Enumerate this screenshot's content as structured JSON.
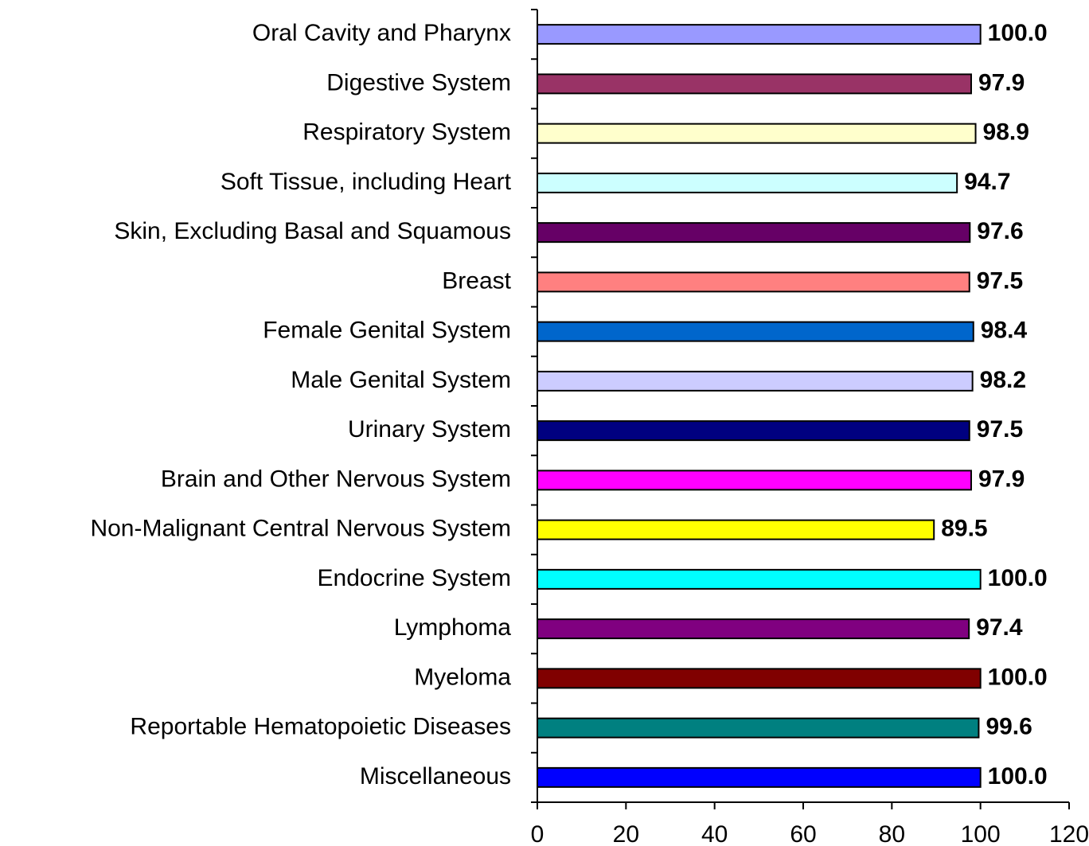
{
  "chart_data": {
    "type": "bar",
    "orientation": "horizontal",
    "categories": [
      "Oral Cavity and Pharynx",
      "Digestive System",
      "Respiratory System",
      "Soft Tissue, including Heart",
      "Skin, Excluding Basal and Squamous",
      "Breast",
      "Female Genital System",
      "Male Genital System",
      "Urinary System",
      "Brain and Other Nervous System",
      "Non-Malignant Central Nervous System",
      "Endocrine System",
      "Lymphoma",
      "Myeloma",
      "Reportable Hematopoietic Diseases",
      "Miscellaneous"
    ],
    "values": [
      100,
      97.9,
      98.9,
      94.7,
      97.6,
      97.5,
      98.4,
      98.2,
      97.5,
      97.9,
      89.5,
      100,
      97.4,
      100,
      99.6,
      100
    ],
    "value_labels": [
      "100.0",
      "97.9",
      "98.9",
      "94.7",
      "97.6",
      "97.5",
      "98.4",
      "98.2",
      "97.5",
      "97.9",
      "89.5",
      "100.0",
      "97.4",
      "100.0",
      "99.6",
      "100.0"
    ],
    "colors": [
      "#9999ff",
      "#993366",
      "#ffffcc",
      "#ccffff",
      "#660066",
      "#ff8080",
      "#0066cc",
      "#ccccff",
      "#000080",
      "#ff00ff",
      "#ffff00",
      "#00ffff",
      "#800080",
      "#800000",
      "#008080",
      "#0000ff"
    ],
    "xlim": [
      0,
      120
    ],
    "xticks": [
      0,
      20,
      40,
      60,
      80,
      100,
      120
    ],
    "grid": false
  }
}
